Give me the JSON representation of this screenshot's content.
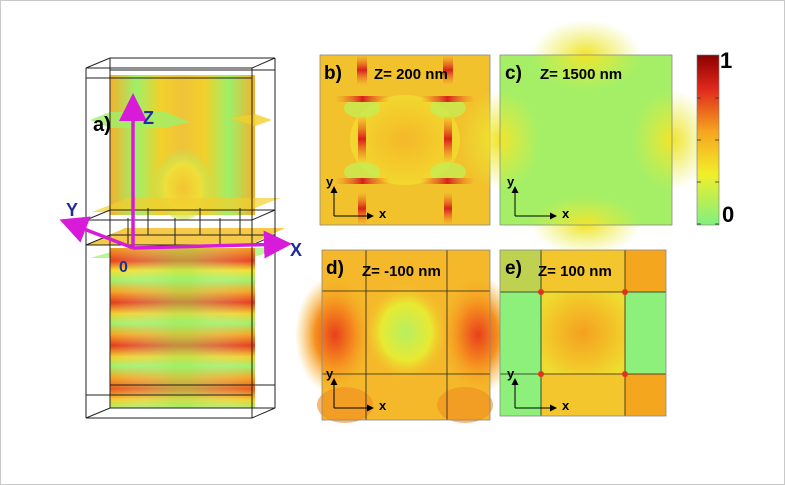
{
  "figure": {
    "panel_a": {
      "label": "a)",
      "axes": {
        "x": "X",
        "y": "Y",
        "z": "Z",
        "origin": "0"
      }
    },
    "panels": [
      {
        "id": "b",
        "label": "b)",
        "title": "Z= 200 nm",
        "axis_x": "x",
        "axis_y": "y"
      },
      {
        "id": "c",
        "label": "c)",
        "title": "Z= 1500 nm",
        "axis_x": "x",
        "axis_y": "y"
      },
      {
        "id": "d",
        "label": "d)",
        "title": "Z= -100 nm",
        "axis_x": "x",
        "axis_y": "y"
      },
      {
        "id": "e",
        "label": "e)",
        "title": "Z= 100 nm",
        "axis_x": "x",
        "axis_y": "y"
      }
    ],
    "colorbar": {
      "max_label": "1",
      "min_label": "0"
    },
    "colors": {
      "axis_magenta": "#d81bd8",
      "field_green": "#7ff07f",
      "field_yellow": "#f2ee2a",
      "field_orange": "#f5a51f",
      "field_red": "#e0281b",
      "field_darkred": "#8b0000"
    }
  }
}
